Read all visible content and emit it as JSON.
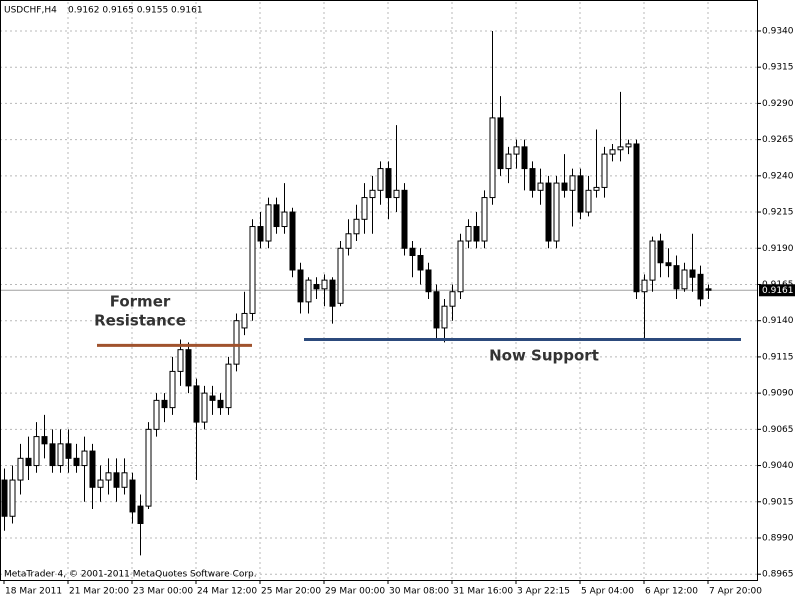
{
  "chart_data": {
    "type": "candlestick",
    "title": "USDCHF,H4",
    "ohlc_label": "0.9162 0.9165 0.9155 0.9161",
    "footer": "MetaTrader 4, © 2001-2011 MetaQuotes Software Corp.",
    "categories": [
      "18 Mar 2011",
      null,
      null,
      null,
      null,
      null,
      null,
      null,
      "21 Mar 20:00",
      null,
      null,
      null,
      null,
      null,
      null,
      null,
      "23 Mar 00:00",
      null,
      null,
      null,
      null,
      null,
      null,
      null,
      "24 Mar 12:00",
      null,
      null,
      null,
      null,
      null,
      null,
      null,
      "25 Mar 20:00",
      null,
      null,
      null,
      null,
      null,
      null,
      null,
      "29 Mar 00:00",
      null,
      null,
      null,
      null,
      null,
      null,
      null,
      "30 Mar 08:00",
      null,
      null,
      null,
      null,
      null,
      null,
      null,
      "31 Mar 16:00",
      null,
      null,
      null,
      null,
      null,
      null,
      null,
      "3 Apr 22:15",
      null,
      null,
      null,
      null,
      null,
      null,
      null,
      "5 Apr 04:00",
      null,
      null,
      null,
      null,
      null,
      null,
      null,
      "6 Apr 12:00",
      null,
      null,
      null,
      null,
      null,
      null,
      null,
      "7 Apr 20:00"
    ],
    "open": [
      0.903,
      0.9005,
      0.903,
      0.9045,
      0.904,
      0.906,
      0.9055,
      0.904,
      0.9055,
      0.9045,
      0.904,
      0.905,
      0.9025,
      0.903,
      0.9035,
      0.9025,
      0.903,
      0.9012,
      0.9012,
      0.9065,
      0.9085,
      0.908,
      0.9105,
      0.912,
      0.9095,
      0.907,
      0.9088,
      0.9085,
      0.908,
      0.911,
      0.9135,
      0.9145,
      0.9205,
      0.9195,
      0.922,
      0.9205,
      0.9215,
      0.9175,
      0.9153,
      0.9165,
      0.9162,
      0.9168,
      0.9152,
      0.919,
      0.92,
      0.921,
      0.9225,
      0.923,
      0.9245,
      0.9225,
      0.923,
      0.919,
      0.9185,
      0.9175,
      0.916,
      0.9135,
      0.915,
      0.916,
      0.9195,
      0.9205,
      0.9195,
      0.9225,
      0.928,
      0.9245,
      0.9255,
      0.926,
      0.9245,
      0.923,
      0.9235,
      0.9195,
      0.9235,
      0.923,
      0.924,
      0.9215,
      0.923,
      0.9232,
      0.9255,
      0.9258,
      0.926,
      0.9262,
      0.916,
      0.9168,
      0.9195,
      0.918,
      0.9178,
      0.9162,
      0.9175,
      0.9172,
      0.9162
    ],
    "high": [
      0.9038,
      0.904,
      0.9055,
      0.906,
      0.907,
      0.9075,
      0.9065,
      0.9065,
      0.9065,
      0.9055,
      0.906,
      0.9055,
      0.904,
      0.9045,
      0.9045,
      0.9045,
      0.9035,
      0.902,
      0.907,
      0.909,
      0.909,
      0.9115,
      0.9127,
      0.9125,
      0.91,
      0.9095,
      0.9095,
      0.909,
      0.9115,
      0.9145,
      0.916,
      0.921,
      0.9215,
      0.9225,
      0.9225,
      0.9235,
      0.9218,
      0.918,
      0.917,
      0.917,
      0.9172,
      0.917,
      0.9195,
      0.921,
      0.922,
      0.9235,
      0.924,
      0.925,
      0.925,
      0.9275,
      0.9235,
      0.9195,
      0.919,
      0.918,
      0.9165,
      0.9155,
      0.9165,
      0.92,
      0.921,
      0.9215,
      0.923,
      0.934,
      0.9295,
      0.926,
      0.9265,
      0.9265,
      0.925,
      0.9245,
      0.924,
      0.924,
      0.9255,
      0.9245,
      0.9245,
      0.924,
      0.9272,
      0.926,
      0.9262,
      0.9298,
      0.9265,
      0.9265,
      0.9172,
      0.9198,
      0.92,
      0.919,
      0.9185,
      0.918,
      0.92,
      0.9178,
      0.9165
    ],
    "low": [
      0.8995,
      0.9,
      0.902,
      0.903,
      0.9035,
      0.9045,
      0.9035,
      0.9035,
      0.9035,
      0.9035,
      0.9015,
      0.901,
      0.9015,
      0.902,
      0.9015,
      0.902,
      0.9,
      0.8978,
      0.901,
      0.906,
      0.907,
      0.9075,
      0.9095,
      0.909,
      0.903,
      0.9065,
      0.9075,
      0.9075,
      0.9075,
      0.9105,
      0.913,
      0.914,
      0.919,
      0.919,
      0.92,
      0.92,
      0.917,
      0.9145,
      0.9145,
      0.9155,
      0.915,
      0.9138,
      0.915,
      0.9185,
      0.9195,
      0.92,
      0.92,
      0.922,
      0.921,
      0.9215,
      0.9185,
      0.917,
      0.9165,
      0.9155,
      0.9127,
      0.9125,
      0.914,
      0.9155,
      0.919,
      0.919,
      0.919,
      0.922,
      0.924,
      0.9235,
      0.9245,
      0.923,
      0.9225,
      0.922,
      0.919,
      0.919,
      0.9225,
      0.9205,
      0.921,
      0.9212,
      0.9225,
      0.9225,
      0.925,
      0.925,
      0.9255,
      0.9155,
      0.9128,
      0.916,
      0.917,
      0.917,
      0.9155,
      0.916,
      0.916,
      0.915,
      0.9155
    ],
    "close": [
      0.9005,
      0.903,
      0.9045,
      0.904,
      0.906,
      0.9055,
      0.904,
      0.9055,
      0.9045,
      0.904,
      0.905,
      0.9025,
      0.903,
      0.9035,
      0.9025,
      0.9035,
      0.9008,
      0.9,
      0.9065,
      0.9085,
      0.908,
      0.9105,
      0.912,
      0.9095,
      0.907,
      0.909,
      0.9085,
      0.908,
      0.911,
      0.914,
      0.9145,
      0.9205,
      0.9195,
      0.922,
      0.9205,
      0.9215,
      0.9175,
      0.9153,
      0.9168,
      0.9162,
      0.9168,
      0.915,
      0.919,
      0.92,
      0.921,
      0.9225,
      0.923,
      0.9245,
      0.9225,
      0.923,
      0.919,
      0.9185,
      0.9175,
      0.916,
      0.9135,
      0.915,
      0.916,
      0.9195,
      0.9205,
      0.9195,
      0.9225,
      0.928,
      0.9245,
      0.9255,
      0.926,
      0.9245,
      0.923,
      0.9235,
      0.9195,
      0.9235,
      0.923,
      0.924,
      0.9215,
      0.923,
      0.9232,
      0.9255,
      0.9258,
      0.926,
      0.9262,
      0.916,
      0.9168,
      0.9195,
      0.918,
      0.9178,
      0.9162,
      0.9175,
      0.917,
      0.9155,
      0.9161
    ],
    "last_price": 0.9161,
    "ylim": [
      0.8961,
      0.936
    ],
    "yticks": [
      {
        "value": 0.8965,
        "label": "0.8965"
      },
      {
        "value": 0.899,
        "label": "0.8990"
      },
      {
        "value": 0.9015,
        "label": "0.9015"
      },
      {
        "value": 0.904,
        "label": "0.9040"
      },
      {
        "value": 0.9065,
        "label": "0.9065"
      },
      {
        "value": 0.909,
        "label": "0.9090"
      },
      {
        "value": 0.9115,
        "label": "0.9115"
      },
      {
        "value": 0.914,
        "label": "0.9140"
      },
      {
        "value": 0.9165,
        "label": "0.9165"
      },
      {
        "value": 0.919,
        "label": "0.9190"
      },
      {
        "value": 0.9215,
        "label": "0.9215"
      },
      {
        "value": 0.924,
        "label": "0.9240"
      },
      {
        "value": 0.9265,
        "label": "0.9265"
      },
      {
        "value": 0.929,
        "label": "0.9290"
      },
      {
        "value": 0.9315,
        "label": "0.9315"
      },
      {
        "value": 0.934,
        "label": "0.9340"
      }
    ],
    "grid": true,
    "annotations": [
      {
        "lines": [
          "Former",
          "Resistance"
        ],
        "level": 0.9123,
        "color": "#a0522d"
      },
      {
        "lines": [
          "Now Support"
        ],
        "level": 0.9127,
        "color": "#2c4a7c"
      }
    ]
  }
}
